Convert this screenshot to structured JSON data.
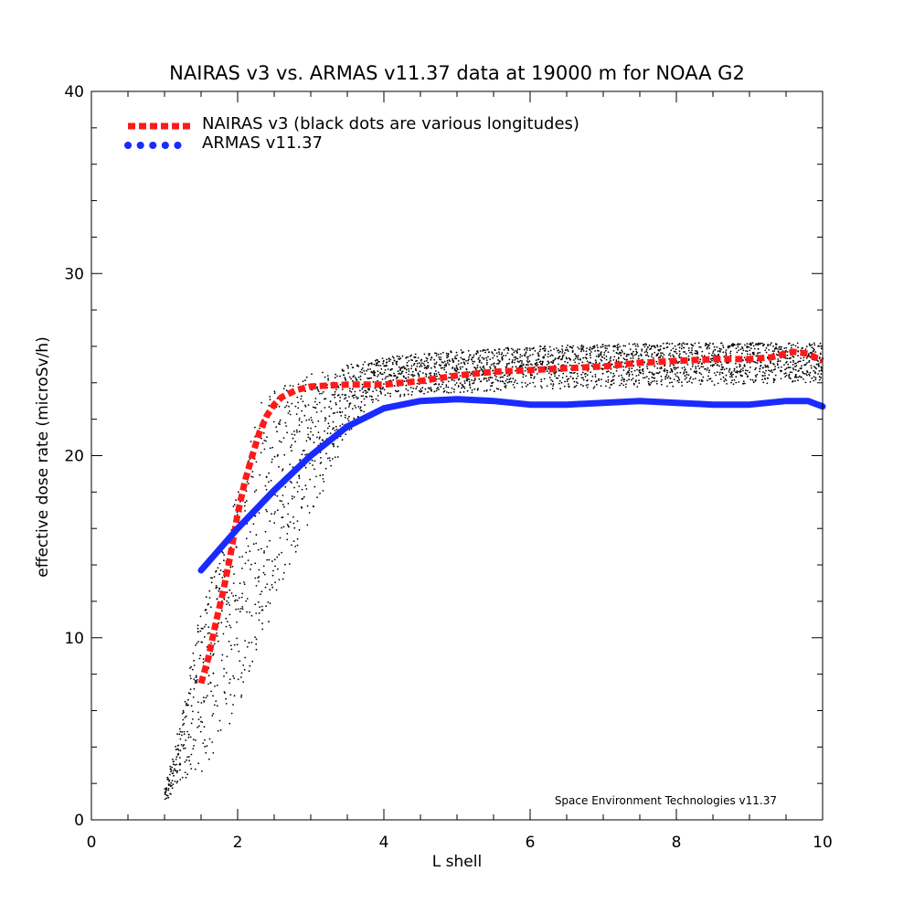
{
  "chart_data": {
    "type": "line",
    "title": "NAIRAS  v3 vs. ARMAS v11.37 data at 19000 m for NOAA G2",
    "xlabel": "L shell",
    "ylabel": "effective dose rate (microSv/h)",
    "xlim": [
      0,
      10
    ],
    "ylim": [
      0,
      40
    ],
    "x_ticks": [
      0,
      2,
      4,
      6,
      8,
      10
    ],
    "y_ticks": [
      0,
      10,
      20,
      30,
      40
    ],
    "x_tick_labels": [
      "0",
      "2",
      "4",
      "6",
      "8",
      "10"
    ],
    "y_tick_labels": [
      "0",
      "10",
      "20",
      "30",
      "40"
    ],
    "grid": false,
    "legend_position": "top-left",
    "annotation": "Space Environment Technologies v11.37",
    "series": [
      {
        "name": "NAIRAS v3 (black dots are various longitudes)",
        "color": "#ff1a1a",
        "style": "dashed-thick",
        "x": [
          1.5,
          1.6,
          1.7,
          1.8,
          1.9,
          2.0,
          2.1,
          2.2,
          2.3,
          2.4,
          2.5,
          2.6,
          2.8,
          3.0,
          3.5,
          4.0,
          4.5,
          5.0,
          5.5,
          6.0,
          6.5,
          7.0,
          7.5,
          8.0,
          8.5,
          9.0,
          9.3,
          9.6,
          9.8,
          10.0
        ],
        "y": [
          7.5,
          8.9,
          10.8,
          12.5,
          14.5,
          16.8,
          18.6,
          20.0,
          21.3,
          22.2,
          22.8,
          23.2,
          23.6,
          23.8,
          23.9,
          23.9,
          24.1,
          24.4,
          24.6,
          24.7,
          24.8,
          24.9,
          25.1,
          25.2,
          25.3,
          25.3,
          25.4,
          25.7,
          25.6,
          25.2
        ]
      },
      {
        "name": "ARMAS v11.37",
        "color": "#1a2bff",
        "style": "solid-thick",
        "x": [
          1.5,
          2.0,
          2.5,
          3.0,
          3.5,
          4.0,
          4.5,
          5.0,
          5.5,
          6.0,
          6.5,
          7.0,
          7.5,
          8.0,
          8.5,
          9.0,
          9.5,
          9.8,
          10.0
        ],
        "y": [
          13.7,
          16.0,
          18.1,
          20.0,
          21.6,
          22.6,
          23.0,
          23.1,
          23.0,
          22.8,
          22.8,
          22.9,
          23.0,
          22.9,
          22.8,
          22.8,
          23.0,
          23.0,
          22.7
        ]
      }
    ],
    "scatter_envelope": {
      "name": "various longitudes",
      "color": "#000000",
      "upper": {
        "x": [
          1.0,
          1.2,
          1.5,
          2.0,
          2.3,
          2.5,
          3.0,
          3.5,
          4.0,
          5.0,
          6.0,
          7.0,
          8.0,
          9.0,
          10.0
        ],
        "y": [
          1.5,
          5.0,
          11.5,
          18.0,
          22.8,
          23.6,
          24.5,
          25.0,
          25.4,
          25.8,
          26.0,
          26.1,
          26.2,
          26.2,
          26.2
        ]
      },
      "lower": {
        "x": [
          1.0,
          1.2,
          1.5,
          2.0,
          2.5,
          3.0,
          3.5,
          4.0,
          5.0,
          6.0,
          7.0,
          8.0,
          9.0,
          10.0
        ],
        "y": [
          1.0,
          1.8,
          2.3,
          6.0,
          11.5,
          16.5,
          21.0,
          23.2,
          23.4,
          23.6,
          23.7,
          23.8,
          23.9,
          24.0
        ]
      }
    }
  }
}
